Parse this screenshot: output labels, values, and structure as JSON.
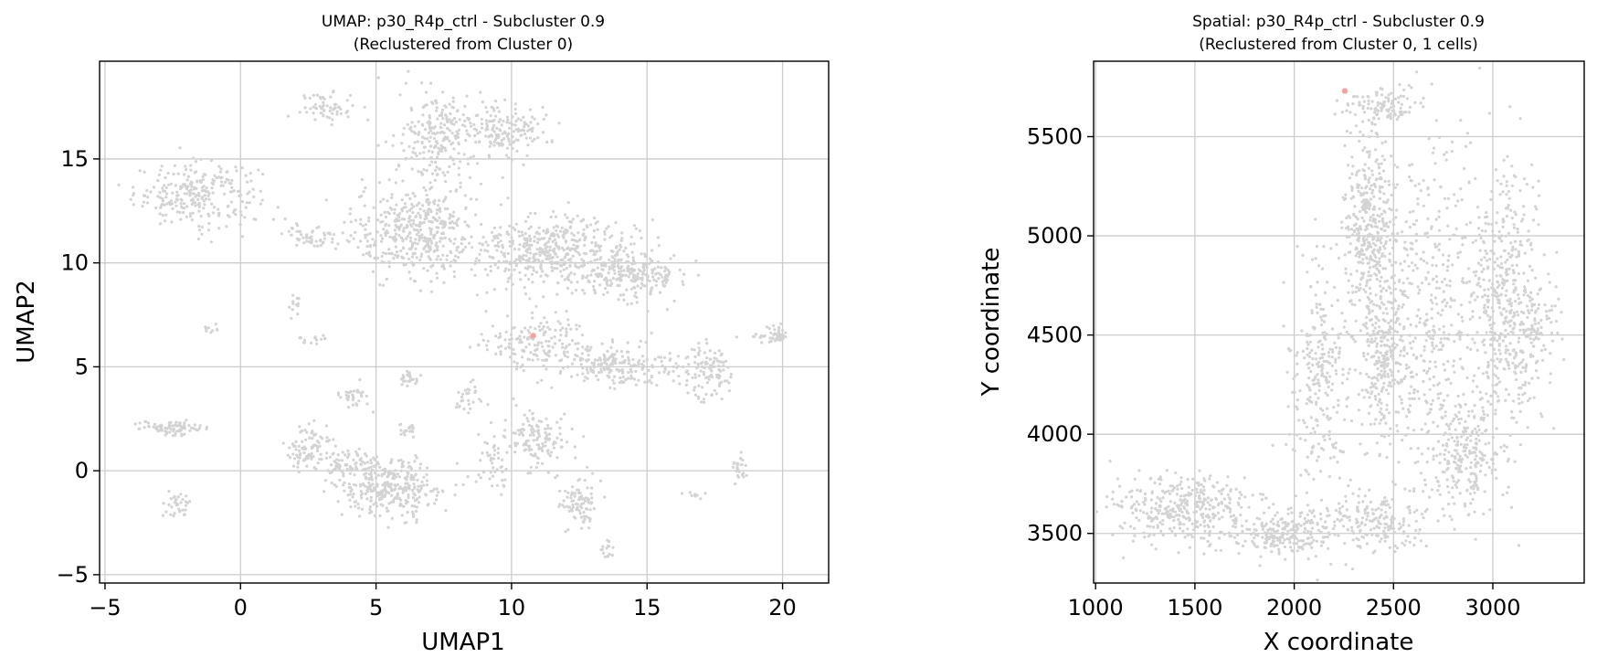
{
  "chart_data": [
    {
      "type": "scatter",
      "title": "UMAP: p30_R4p_ctrl - Subcluster 0.9",
      "subtitle": "(Reclustered from Cluster 0)",
      "xlabel": "UMAP1",
      "ylabel": "UMAP2",
      "xlim": [
        -5.2,
        21.7
      ],
      "ylim": [
        -5.4,
        19.7
      ],
      "xticks": [
        -5,
        0,
        5,
        10,
        15,
        20
      ],
      "yticks": [
        -5,
        0,
        5,
        10,
        15
      ],
      "grid": true,
      "background_color": "#d3d3d3",
      "highlight_color": "#f4a3a3",
      "background_regions": [
        {
          "cx": -1.6,
          "cy": 13.3,
          "rx": 2.3,
          "ry": 1.5,
          "n": 260
        },
        {
          "cx": 2.8,
          "cy": 11.3,
          "rx": 1.2,
          "ry": 0.6,
          "n": 60
        },
        {
          "cx": 3.2,
          "cy": 17.5,
          "rx": 1.0,
          "ry": 0.7,
          "n": 60
        },
        {
          "cx": 6.5,
          "cy": 11.5,
          "rx": 2.3,
          "ry": 2.3,
          "n": 420
        },
        {
          "cx": 7.3,
          "cy": 16.0,
          "rx": 1.4,
          "ry": 2.2,
          "n": 220
        },
        {
          "cx": 9.8,
          "cy": 16.5,
          "rx": 1.6,
          "ry": 1.3,
          "n": 160
        },
        {
          "cx": 11.5,
          "cy": 10.5,
          "rx": 3.0,
          "ry": 1.6,
          "n": 460
        },
        {
          "cx": 14.5,
          "cy": 9.5,
          "rx": 1.8,
          "ry": 1.2,
          "n": 220
        },
        {
          "cx": 11.0,
          "cy": 6.2,
          "rx": 2.2,
          "ry": 1.2,
          "n": 170
        },
        {
          "cx": 14.0,
          "cy": 5.0,
          "rx": 2.5,
          "ry": 1.0,
          "n": 200
        },
        {
          "cx": 17.3,
          "cy": 4.7,
          "rx": 1.0,
          "ry": 1.4,
          "n": 110
        },
        {
          "cx": 19.7,
          "cy": 6.5,
          "rx": 0.7,
          "ry": 0.4,
          "n": 50
        },
        {
          "cx": 5.5,
          "cy": -0.9,
          "rx": 2.0,
          "ry": 1.4,
          "n": 300
        },
        {
          "cx": 2.5,
          "cy": 1.2,
          "rx": 0.8,
          "ry": 1.0,
          "n": 90
        },
        {
          "cx": 4.0,
          "cy": 0.3,
          "rx": 1.3,
          "ry": 0.6,
          "n": 90
        },
        {
          "cx": -2.6,
          "cy": 2.1,
          "rx": 1.4,
          "ry": 0.3,
          "n": 80
        },
        {
          "cx": -2.4,
          "cy": -1.5,
          "rx": 0.5,
          "ry": 0.7,
          "n": 35
        },
        {
          "cx": 4.2,
          "cy": 3.5,
          "rx": 0.5,
          "ry": 0.6,
          "n": 35
        },
        {
          "cx": 6.2,
          "cy": 4.5,
          "rx": 0.4,
          "ry": 0.4,
          "n": 25
        },
        {
          "cx": 11.0,
          "cy": 1.5,
          "rx": 1.2,
          "ry": 1.3,
          "n": 130
        },
        {
          "cx": 12.5,
          "cy": -1.5,
          "rx": 0.8,
          "ry": 1.3,
          "n": 90
        },
        {
          "cx": 13.5,
          "cy": -3.8,
          "rx": 0.3,
          "ry": 0.5,
          "n": 15
        },
        {
          "cx": 9.3,
          "cy": 0.5,
          "rx": 0.6,
          "ry": 1.2,
          "n": 45
        },
        {
          "cx": 18.4,
          "cy": 0.1,
          "rx": 0.3,
          "ry": 0.6,
          "n": 25
        },
        {
          "cx": 6.2,
          "cy": 2.0,
          "rx": 0.4,
          "ry": 0.4,
          "n": 20
        },
        {
          "cx": 8.5,
          "cy": 3.4,
          "rx": 0.6,
          "ry": 0.8,
          "n": 30
        },
        {
          "cx": 16.8,
          "cy": -1.2,
          "rx": 0.3,
          "ry": 0.2,
          "n": 8
        },
        {
          "cx": -1.2,
          "cy": 6.8,
          "rx": 0.3,
          "ry": 0.2,
          "n": 10
        },
        {
          "cx": 2.0,
          "cy": 8.0,
          "rx": 0.2,
          "ry": 0.6,
          "n": 12
        },
        {
          "cx": 2.8,
          "cy": 6.3,
          "rx": 0.6,
          "ry": 0.2,
          "n": 15
        }
      ],
      "highlight_points": [
        {
          "x": 10.8,
          "y": 6.5
        }
      ]
    },
    {
      "type": "scatter",
      "title": "Spatial: p30_R4p_ctrl - Subcluster 0.9",
      "subtitle": "(Reclustered from Cluster 0, 1 cells)",
      "xlabel": "X coordinate",
      "ylabel": "Y coordinate",
      "xlim": [
        990,
        3460
      ],
      "ylim": [
        3250,
        5880
      ],
      "xticks": [
        1000,
        1500,
        2000,
        2500,
        3000
      ],
      "yticks": [
        3500,
        4000,
        4500,
        5000,
        5500
      ],
      "grid": true,
      "background_color": "#d3d3d3",
      "highlight_color": "#f4a3a3",
      "background_regions": [
        {
          "cx": 1450,
          "cy": 3620,
          "rx": 340,
          "ry": 170,
          "n": 360
        },
        {
          "cx": 1950,
          "cy": 3500,
          "rx": 260,
          "ry": 120,
          "n": 240
        },
        {
          "cx": 2400,
          "cy": 3550,
          "rx": 250,
          "ry": 160,
          "n": 180
        },
        {
          "cx": 2380,
          "cy": 5050,
          "rx": 150,
          "ry": 450,
          "n": 400
        },
        {
          "cx": 2450,
          "cy": 4400,
          "rx": 130,
          "ry": 400,
          "n": 260
        },
        {
          "cx": 2150,
          "cy": 4300,
          "rx": 160,
          "ry": 600,
          "n": 280
        },
        {
          "cx": 2700,
          "cy": 4600,
          "rx": 250,
          "ry": 900,
          "n": 380
        },
        {
          "cx": 3050,
          "cy": 4700,
          "rx": 160,
          "ry": 700,
          "n": 420
        },
        {
          "cx": 2850,
          "cy": 3900,
          "rx": 200,
          "ry": 300,
          "n": 230
        },
        {
          "cx": 2450,
          "cy": 5650,
          "rx": 200,
          "ry": 90,
          "n": 110
        },
        {
          "cx": 3200,
          "cy": 4500,
          "rx": 120,
          "ry": 300,
          "n": 130
        }
      ],
      "highlight_points": [
        {
          "x": 2255,
          "y": 5730
        }
      ]
    }
  ]
}
